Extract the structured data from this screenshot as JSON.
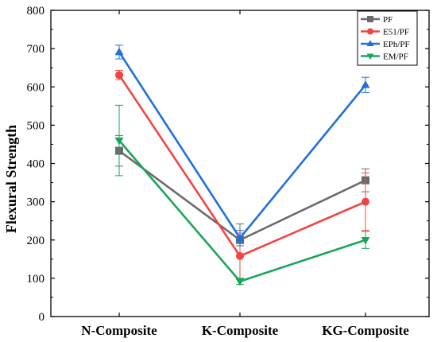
{
  "chart_data": {
    "type": "line",
    "title": "",
    "xlabel": "",
    "ylabel": "Flexural Strength",
    "categories": [
      "N-Composite",
      "K-Composite",
      "KG-Composite"
    ],
    "ylim": [
      0,
      800
    ],
    "yticks": [
      0,
      100,
      200,
      300,
      400,
      500,
      600,
      700,
      800
    ],
    "grid": false,
    "legend_position": "top-right",
    "series": [
      {
        "name": "PF",
        "color": "#6b6b6b",
        "marker": "square",
        "values": [
          433,
          200,
          356
        ],
        "errors": [
          40,
          42,
          30
        ]
      },
      {
        "name": "E51/PF",
        "color": "#f04545",
        "marker": "circle",
        "values": [
          631,
          158,
          300
        ],
        "errors": [
          12,
          60,
          75
        ]
      },
      {
        "name": "EPh/PF",
        "color": "#1f6fdc",
        "marker": "triangle-up",
        "values": [
          691,
          205,
          605
        ],
        "errors": [
          18,
          20,
          20
        ]
      },
      {
        "name": "EM/PF",
        "color": "#19a65a",
        "marker": "triangle-down",
        "values": [
          460,
          92,
          200
        ],
        "errors": [
          92,
          8,
          22
        ]
      }
    ]
  }
}
